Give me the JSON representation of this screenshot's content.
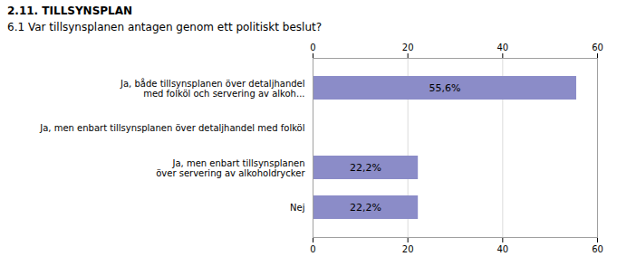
{
  "chart_data": {
    "type": "bar",
    "orientation": "horizontal",
    "title": "2.11. TILLSYNSPLAN",
    "subtitle": "6.1 Var tillsynsplanen antagen genom ett politiskt beslut?",
    "categories": [
      "Nej",
      "Ja, men enbart tillsynsplanen\növer servering av alkoholdrycker",
      "Ja, men enbart tillsynsplanen över detaljhandel med folköl",
      "Ja, både tillsynsplanen över detaljhandel\nmed folköl och servering av alkoh..."
    ],
    "values": [
      22.2,
      22.2,
      0.0,
      55.6
    ],
    "value_labels": [
      "22,2%",
      "22,2%",
      null,
      "55,6%"
    ],
    "data_labels": true,
    "color": "#8b8cc8",
    "xlim": [
      0,
      60
    ],
    "xticks": [
      0,
      20,
      40,
      60
    ],
    "grid": true
  }
}
